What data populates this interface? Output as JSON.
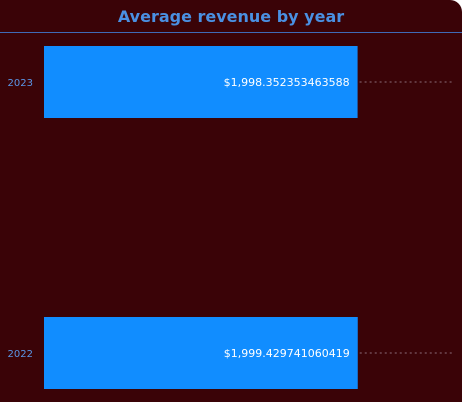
{
  "chart_data": {
    "type": "bar",
    "orientation": "horizontal",
    "title": "Average revenue by year",
    "categories": [
      "2023",
      "2022"
    ],
    "values": [
      1998.352353463588,
      1999.429741060419
    ],
    "data_labels": [
      "$1,998.352353463588",
      "$1,999.429741060419"
    ],
    "xlabel": "",
    "ylabel": "",
    "xlim": [
      0,
      2600
    ],
    "grid": true,
    "legend": "none"
  },
  "colors": {
    "background": "#3a0307",
    "bar": "#118dff",
    "title": "#4a90e2",
    "tick": "#5a95e6",
    "gridline": "#8a6c78"
  }
}
